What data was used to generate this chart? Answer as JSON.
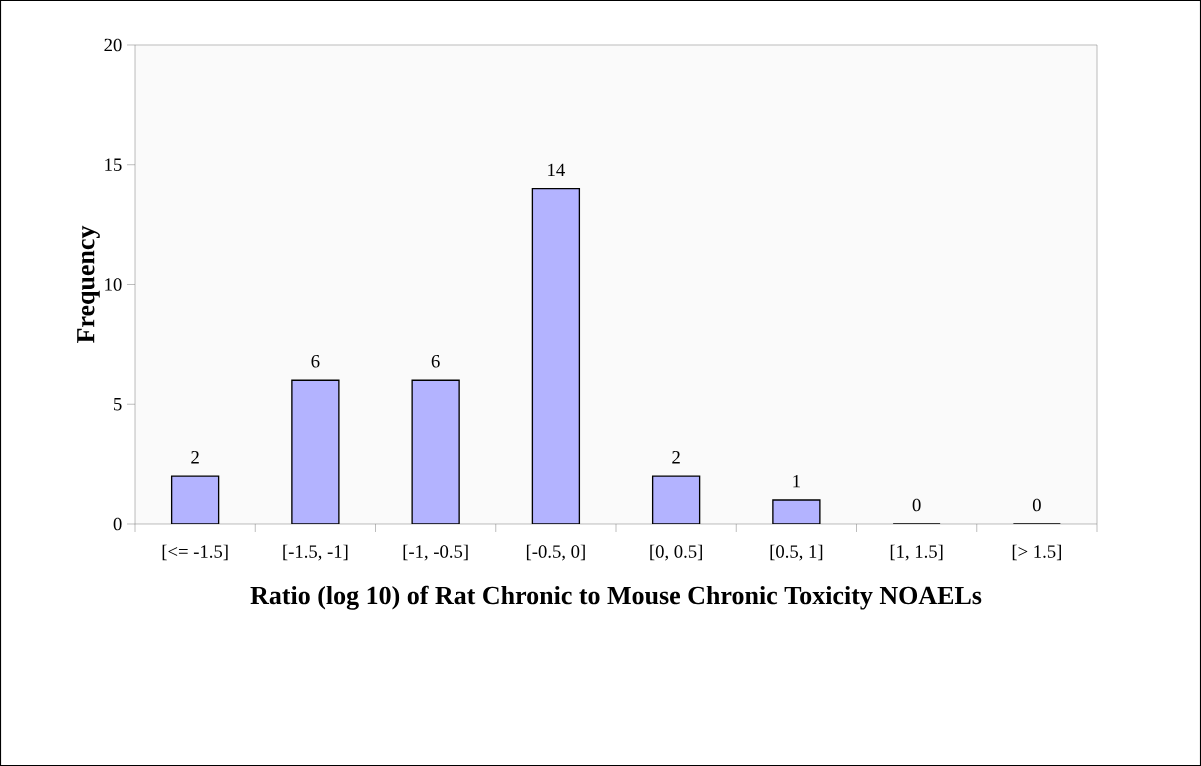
{
  "chart_data": {
    "type": "bar",
    "xlabel": "Ratio (log 10) of Rat Chronic to Mouse Chronic Toxicity NOAELs",
    "ylabel": "Frequency",
    "categories": [
      "[<= -1.5]",
      "[-1.5, -1]",
      "[-1, -0.5]",
      "[-0.5, 0]",
      "[0, 0.5]",
      "[0.5, 1]",
      "[1, 1.5]",
      "[> 1.5]"
    ],
    "values": [
      2,
      6,
      6,
      14,
      2,
      1,
      0,
      0
    ],
    "color": "#b3b3ff",
    "ylim": [
      0,
      20
    ],
    "yticks": [
      0,
      5,
      10,
      15,
      20
    ],
    "data_labels": true
  }
}
